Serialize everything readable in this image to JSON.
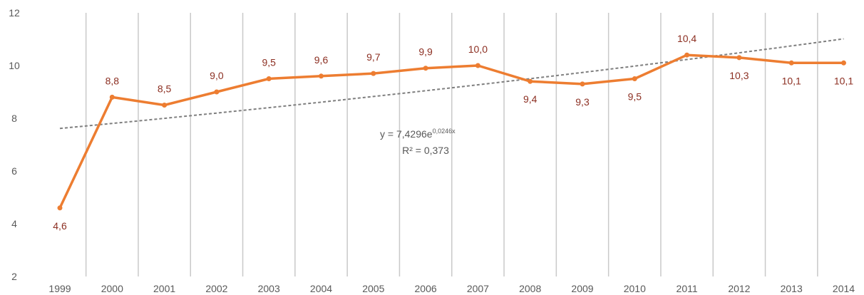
{
  "chart_data": {
    "type": "line",
    "title": "",
    "xlabel": "",
    "ylabel": "",
    "categories": [
      "1999",
      "2000",
      "2001",
      "2002",
      "2003",
      "2004",
      "2005",
      "2006",
      "2007",
      "2008",
      "2009",
      "2010",
      "2011",
      "2012",
      "2013",
      "2014"
    ],
    "series": [
      {
        "values": [
          4.6,
          8.8,
          8.5,
          9.0,
          9.5,
          9.6,
          9.7,
          9.9,
          10.0,
          9.4,
          9.3,
          9.5,
          10.4,
          10.3,
          10.1,
          10.1
        ],
        "labels": [
          "4,6",
          "8,8",
          "8,5",
          "9,0",
          "9,5",
          "9,6",
          "9,7",
          "9,9",
          "10,0",
          "9,4",
          "9,3",
          "9,5",
          "10,4",
          "10,3",
          "10,1",
          "10,1"
        ],
        "label_positions": [
          "below",
          "above",
          "above",
          "above",
          "above",
          "above",
          "above",
          "above",
          "above",
          "below",
          "below",
          "below",
          "above",
          "below",
          "below",
          "below"
        ]
      }
    ],
    "trendline": {
      "type": "exponential",
      "a": 7.4296,
      "b": 0.0246,
      "equation_prefix": "y = 7,4296e",
      "equation_exponent": "0,0246x",
      "r_squared": "R² = 0,373"
    },
    "ylim": [
      2,
      12
    ],
    "yticks": [
      "2",
      "4",
      "6",
      "8",
      "10",
      "12"
    ],
    "ytick_values": [
      2,
      4,
      6,
      8,
      10,
      12
    ],
    "grid": "vertical",
    "legend": "none",
    "colors": {
      "series": "#ed7d31",
      "trendline": "#7f7f7f",
      "gridline": "#c9c9c9",
      "data_label": "#8c2f22",
      "axis_text": "#595959"
    }
  }
}
